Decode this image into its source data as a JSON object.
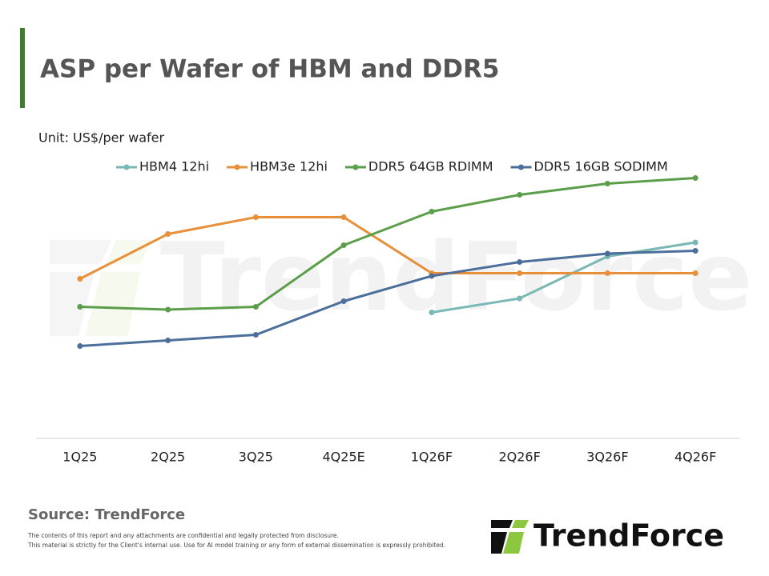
{
  "chart_data": {
    "type": "line",
    "title": "ASP per Wafer of HBM and DDR5",
    "unit_label": "Unit: US$/per wafer",
    "categories": [
      "1Q25",
      "2Q25",
      "3Q25",
      "4Q25E",
      "1Q26F",
      "2Q26F",
      "3Q26F",
      "4Q26F"
    ],
    "series": [
      {
        "name": "HBM4 12hi",
        "color": "#7ab8b5",
        "values": [
          null,
          null,
          null,
          null,
          45,
          50,
          65,
          70
        ]
      },
      {
        "name": "HBM3e 12hi",
        "color": "#e88f3a",
        "values": [
          57,
          73,
          79,
          79,
          59,
          59,
          59,
          59
        ]
      },
      {
        "name": "DDR5 64GB RDIMM",
        "color": "#5a9e4a",
        "values": [
          47,
          46,
          47,
          69,
          81,
          87,
          91,
          93
        ]
      },
      {
        "name": "DDR5 16GB SODIMM",
        "color": "#4b6f9a",
        "values": [
          33,
          35,
          37,
          49,
          58,
          63,
          66,
          67
        ]
      }
    ],
    "ylim": [
      0,
      100
    ],
    "legend": "top",
    "source": "Source: TrendForce",
    "disclaimer": [
      "The contents of this report and any attachments are confidential and legally protected from disclosure.",
      "This material is strictly for the Client's internal use. Use for AI model training or any form of external dissemination is expressly prohibited."
    ],
    "watermark": "TrendForce",
    "logo": "TrendForce"
  }
}
